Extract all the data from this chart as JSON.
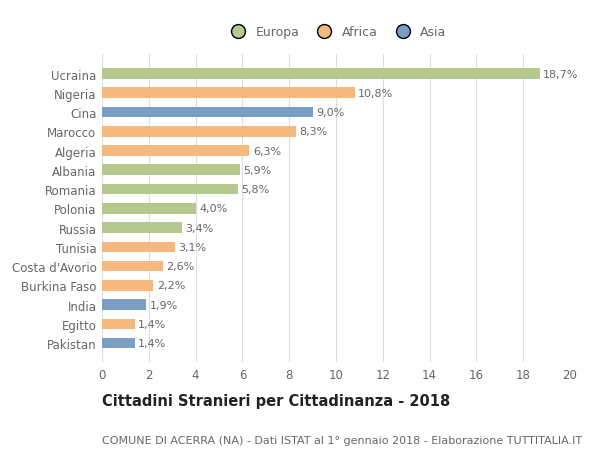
{
  "countries": [
    "Ucraina",
    "Nigeria",
    "Cina",
    "Marocco",
    "Algeria",
    "Albania",
    "Romania",
    "Polonia",
    "Russia",
    "Tunisia",
    "Costa d'Avorio",
    "Burkina Faso",
    "India",
    "Egitto",
    "Pakistan"
  ],
  "values": [
    18.7,
    10.8,
    9.0,
    8.3,
    6.3,
    5.9,
    5.8,
    4.0,
    3.4,
    3.1,
    2.6,
    2.2,
    1.9,
    1.4,
    1.4
  ],
  "labels": [
    "18,7%",
    "10,8%",
    "9,0%",
    "8,3%",
    "6,3%",
    "5,9%",
    "5,8%",
    "4,0%",
    "3,4%",
    "3,1%",
    "2,6%",
    "2,2%",
    "1,9%",
    "1,4%",
    "1,4%"
  ],
  "continents": [
    "Europa",
    "Africa",
    "Asia",
    "Africa",
    "Africa",
    "Europa",
    "Europa",
    "Europa",
    "Europa",
    "Africa",
    "Africa",
    "Africa",
    "Asia",
    "Africa",
    "Asia"
  ],
  "colors": {
    "Europa": "#b5c98e",
    "Africa": "#f5b97f",
    "Asia": "#7b9ec4"
  },
  "title": "Cittadini Stranieri per Cittadinanza - 2018",
  "subtitle": "COMUNE DI ACERRA (NA) - Dati ISTAT al 1° gennaio 2018 - Elaborazione TUTTITALIA.IT",
  "xlim": [
    0,
    20
  ],
  "xticks": [
    0,
    2,
    4,
    6,
    8,
    10,
    12,
    14,
    16,
    18,
    20
  ],
  "background_color": "#ffffff",
  "grid_color": "#dddddd",
  "bar_height": 0.55,
  "title_fontsize": 10.5,
  "subtitle_fontsize": 8,
  "tick_fontsize": 8.5,
  "label_fontsize": 8,
  "legend_fontsize": 9
}
